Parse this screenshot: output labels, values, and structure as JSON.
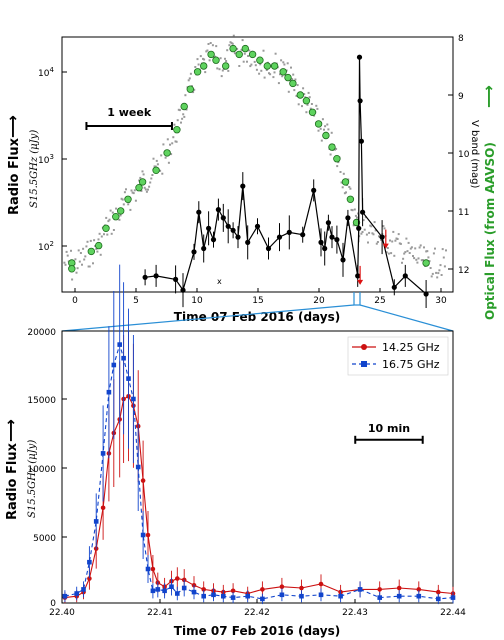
{
  "chart_data": [
    {
      "type": "scatter",
      "xlabel": "Time  07 Feb 2016 (days)",
      "ylabel": "Radio Flux",
      "ylabel_sub": "S15.5GHz (μJy)",
      "y2label": "V band (mag)",
      "right_label": "Optical Flux (from AAVSO)",
      "xlim": [
        -2,
        30
      ],
      "ylim": [
        40,
        25000
      ],
      "y_scale": "log",
      "y2lim": [
        12.4,
        8
      ],
      "x_ticks": [
        "0",
        "5",
        "10",
        "15",
        "20",
        "25",
        "30"
      ],
      "y_ticks": [
        "10^2",
        "10^3",
        "10^4"
      ],
      "y2_ticks": [
        "8",
        "9",
        "10",
        "11",
        "12"
      ],
      "scale_bar_label": "1 week",
      "scale_bar": [
        0,
        7
      ],
      "annotation_x": "x",
      "radio": {
        "x": [
          4.8,
          5.7,
          7.3,
          7.9,
          8.8,
          9.2,
          9.6,
          10.0,
          10.4,
          10.8,
          11.2,
          11.6,
          12.0,
          12.4,
          12.8,
          13.2,
          14.0,
          14.9,
          15.8,
          16.6,
          17.7,
          18.6,
          19.2,
          19.5,
          19.8,
          20.1,
          20.5,
          21.0,
          21.4,
          22.2,
          22.28,
          22.35,
          22.4,
          22.5,
          22.6,
          24.2,
          25.2,
          26.1,
          27.8
        ],
        "y": [
          58,
          60,
          55,
          42,
          110,
          300,
          120,
          200,
          150,
          320,
          260,
          210,
          190,
          160,
          580,
          140,
          210,
          120,
          160,
          180,
          170,
          520,
          140,
          120,
          230,
          160,
          150,
          90,
          260,
          60,
          200,
          15000,
          5000,
          1800,
          300,
          160,
          45,
          60,
          38
        ],
        "upper_limits": [
          [
            22.4,
            60
          ],
          [
            24.5,
            150
          ]
        ]
      },
      "optical": {
        "x": [
          -1.2,
          -1.2,
          0.4,
          1.0,
          1.6,
          2.4,
          2.8,
          3.4,
          4.3,
          4.6,
          5.7,
          6.6,
          7.4,
          8.0,
          8.5,
          9.1,
          9.6,
          10.2,
          10.6,
          11.4,
          12.0,
          12.5,
          13.0,
          13.6,
          14.2,
          14.8,
          15.4,
          16.1,
          16.5,
          16.9,
          17.5,
          18.0,
          18.5,
          19.0,
          19.6,
          20.1,
          20.5,
          21.2,
          21.6,
          22.1,
          27.8
        ],
        "y": [
          11.9,
          12.0,
          11.7,
          11.6,
          11.3,
          11.1,
          11.0,
          10.8,
          10.6,
          10.5,
          10.3,
          10.0,
          9.6,
          9.2,
          8.9,
          8.6,
          8.5,
          8.3,
          8.4,
          8.5,
          8.2,
          8.3,
          8.2,
          8.3,
          8.4,
          8.5,
          8.5,
          8.6,
          8.7,
          8.8,
          9.0,
          9.1,
          9.3,
          9.5,
          9.7,
          9.9,
          10.1,
          10.5,
          10.8,
          11.2,
          11.9
        ]
      }
    },
    {
      "type": "line",
      "xlabel": "Time  07 Feb 2016 (days)",
      "ylabel": "Radio Flux",
      "ylabel_sub": "S15.5GHz (μJy)",
      "xlim": [
        22.4,
        22.44
      ],
      "ylim": [
        0,
        20000
      ],
      "x_ticks": [
        "22.40",
        "22.41",
        "22.42",
        "22.43",
        "22.44"
      ],
      "y_ticks": [
        "0",
        "5000",
        "10000",
        "15000",
        "20000"
      ],
      "scale_bar_label": "10 min",
      "scale_bar_x": [
        22.43,
        22.4369
      ],
      "scale_bar_y": 12000,
      "legend_position": "top-right",
      "series": [
        {
          "name": "14.25 GHz",
          "color": "#cc1111",
          "x": [
            22.4003,
            22.4015,
            22.4022,
            22.4028,
            22.4035,
            22.4042,
            22.4048,
            22.4053,
            22.4059,
            22.4063,
            22.4068,
            22.4073,
            22.4078,
            22.4083,
            22.4088,
            22.4093,
            22.4098,
            22.4105,
            22.4112,
            22.4118,
            22.4125,
            22.4135,
            22.4145,
            22.4155,
            22.4165,
            22.4175,
            22.419,
            22.4205,
            22.4225,
            22.4245,
            22.4265,
            22.4285,
            22.4305,
            22.4325,
            22.4345,
            22.4365,
            22.4385,
            22.44
          ],
          "y": [
            400,
            500,
            800,
            1800,
            4000,
            7000,
            11000,
            12500,
            13500,
            15000,
            15200,
            14500,
            13000,
            9000,
            5000,
            2500,
            1500,
            1200,
            1600,
            1800,
            1700,
            1300,
            1000,
            900,
            800,
            900,
            700,
            1000,
            1200,
            1100,
            1400,
            800,
            1000,
            1000,
            1100,
            1000,
            800,
            700
          ]
        },
        {
          "name": "16.75 GHz",
          "color": "#1144cc",
          "x": [
            22.4003,
            22.4015,
            22.4022,
            22.4028,
            22.4035,
            22.4042,
            22.4048,
            22.4053,
            22.4059,
            22.4063,
            22.4068,
            22.4073,
            22.4078,
            22.4083,
            22.4088,
            22.4093,
            22.4098,
            22.4105,
            22.4112,
            22.4118,
            22.4125,
            22.4135,
            22.4145,
            22.4155,
            22.4165,
            22.4175,
            22.419,
            22.4205,
            22.4225,
            22.4245,
            22.4265,
            22.4285,
            22.4305,
            22.4325,
            22.4345,
            22.4365,
            22.4385,
            22.44
          ],
          "y": [
            500,
            700,
            1000,
            3000,
            6000,
            11000,
            15500,
            17500,
            19000,
            18000,
            16500,
            15000,
            10000,
            5000,
            2500,
            900,
            1000,
            900,
            1200,
            700,
            1100,
            800,
            500,
            600,
            500,
            400,
            500,
            300,
            600,
            500,
            600,
            500,
            1000,
            400,
            500,
            500,
            300,
            400
          ]
        }
      ]
    }
  ]
}
